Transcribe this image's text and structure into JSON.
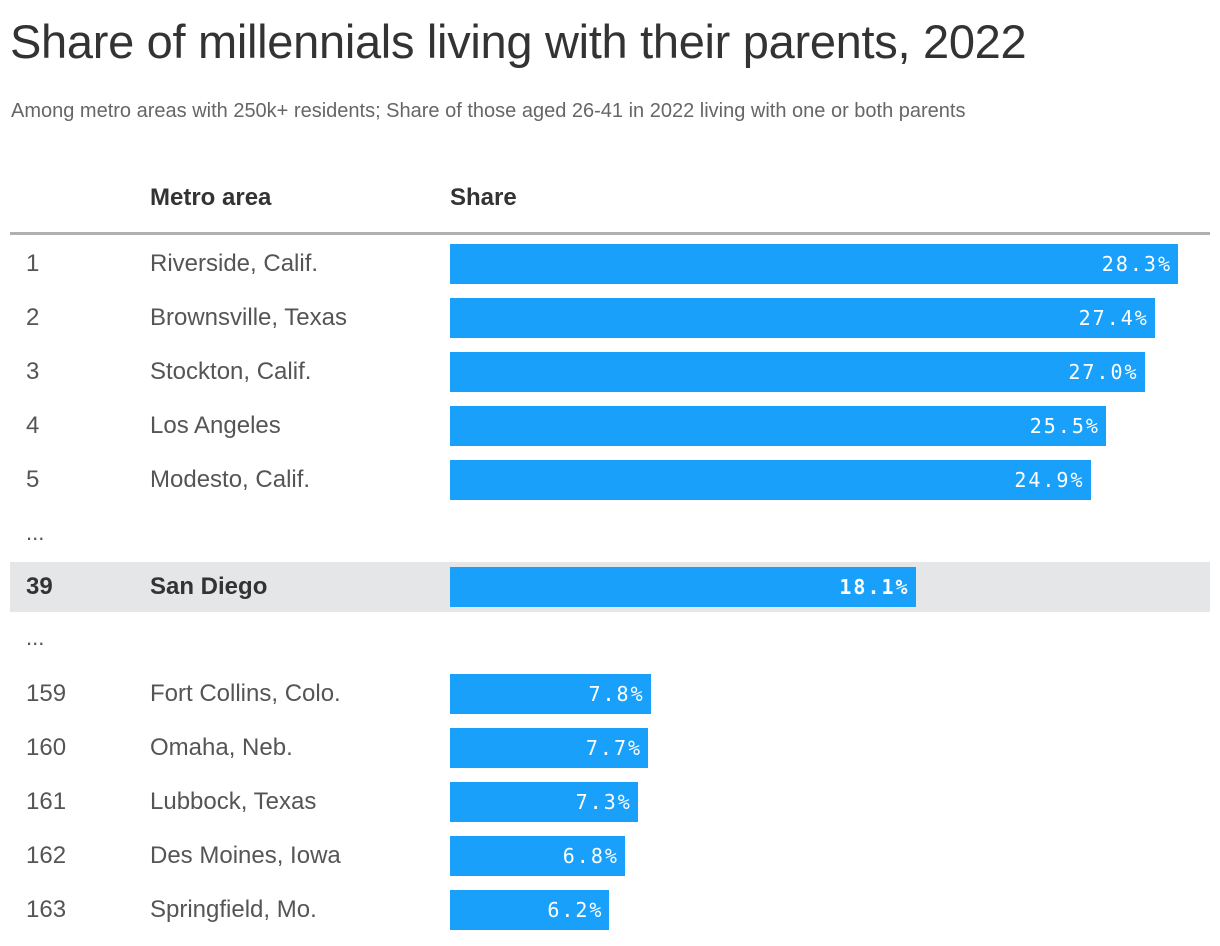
{
  "chart_data": {
    "type": "bar",
    "orientation": "horizontal",
    "title": "Share of millennials living with their parents, 2022",
    "subtitle": "Among metro areas with 250k+ residents; Share of those aged 26-41 in 2022 living with one or both parents",
    "columns": {
      "rank": "",
      "metro": "Metro area",
      "share": "Share"
    },
    "ellipsis": "...",
    "color": "#18a0fb",
    "highlight_color": "#e5e6e8",
    "rows": [
      {
        "rank": "1",
        "metro": "Riverside, Calif.",
        "value": 28.3,
        "label": "28.3%"
      },
      {
        "rank": "2",
        "metro": "Brownsville, Texas",
        "value": 27.4,
        "label": "27.4%"
      },
      {
        "rank": "3",
        "metro": "Stockton, Calif.",
        "value": 27.0,
        "label": "27.0%"
      },
      {
        "rank": "4",
        "metro": "Los Angeles",
        "value": 25.5,
        "label": "25.5%"
      },
      {
        "rank": "5",
        "metro": "Modesto, Calif.",
        "value": 24.9,
        "label": "24.9%"
      },
      {
        "ellipsis": true
      },
      {
        "rank": "39",
        "metro": "San Diego",
        "value": 18.1,
        "label": "18.1%",
        "highlight": true
      },
      {
        "ellipsis": true
      },
      {
        "rank": "159",
        "metro": "Fort Collins, Colo.",
        "value": 7.8,
        "label": "7.8%"
      },
      {
        "rank": "160",
        "metro": "Omaha, Neb.",
        "value": 7.7,
        "label": "7.7%"
      },
      {
        "rank": "161",
        "metro": "Lubbock, Texas",
        "value": 7.3,
        "label": "7.3%"
      },
      {
        "rank": "162",
        "metro": "Des Moines, Iowa",
        "value": 6.8,
        "label": "6.8%"
      },
      {
        "rank": "163",
        "metro": "Springfield, Mo.",
        "value": 6.2,
        "label": "6.2%"
      }
    ]
  }
}
